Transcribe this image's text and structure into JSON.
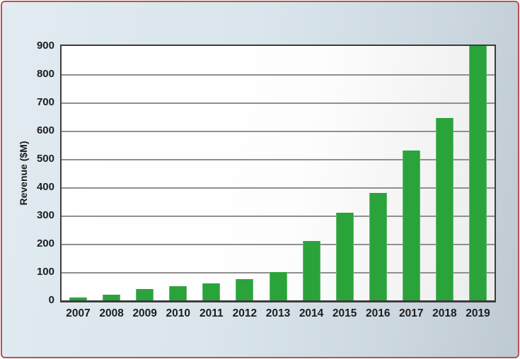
{
  "chart_data": {
    "type": "bar",
    "title": "",
    "xlabel": "",
    "ylabel": "Revenue ($M)",
    "categories": [
      "2007",
      "2008",
      "2009",
      "2010",
      "2011",
      "2012",
      "2013",
      "2014",
      "2015",
      "2016",
      "2017",
      "2018",
      "2019"
    ],
    "values": [
      10,
      20,
      40,
      50,
      60,
      75,
      100,
      210,
      310,
      380,
      530,
      645,
      900
    ],
    "ylim": [
      0,
      900
    ],
    "yticks": [
      0,
      100,
      200,
      300,
      400,
      500,
      600,
      700,
      800,
      900
    ],
    "grid": true,
    "legend": null,
    "bar_color": "#2ba33b"
  },
  "colors": {
    "background_start": "#e1ebf1",
    "background_end": "#bec9d2",
    "slide_border": "#b95150",
    "plot_frame": "#3c3c3c",
    "gridline": "#8f8f8f",
    "bar": "#2ba33b",
    "label_text": "#1d1d1d"
  }
}
